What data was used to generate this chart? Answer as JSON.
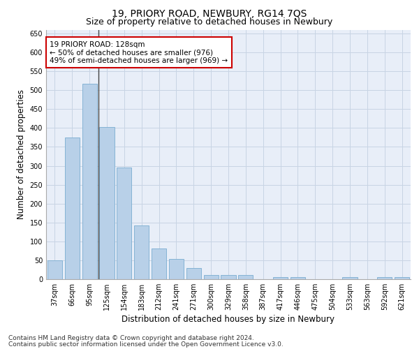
{
  "title": "19, PRIORY ROAD, NEWBURY, RG14 7QS",
  "subtitle": "Size of property relative to detached houses in Newbury",
  "xlabel": "Distribution of detached houses by size in Newbury",
  "ylabel": "Number of detached properties",
  "categories": [
    "37sqm",
    "66sqm",
    "95sqm",
    "125sqm",
    "154sqm",
    "183sqm",
    "212sqm",
    "241sqm",
    "271sqm",
    "300sqm",
    "329sqm",
    "358sqm",
    "387sqm",
    "417sqm",
    "446sqm",
    "475sqm",
    "504sqm",
    "533sqm",
    "563sqm",
    "592sqm",
    "621sqm"
  ],
  "values": [
    50,
    375,
    517,
    402,
    295,
    143,
    82,
    54,
    30,
    11,
    11,
    11,
    0,
    5,
    5,
    0,
    0,
    5,
    0,
    5,
    5
  ],
  "bar_color": "#b8d0e8",
  "bar_edge_color": "#7aacd0",
  "highlight_index": 3,
  "highlight_line_color": "#444444",
  "annotation_text": "19 PRIORY ROAD: 128sqm\n← 50% of detached houses are smaller (976)\n49% of semi-detached houses are larger (969) →",
  "annotation_box_color": "#ffffff",
  "annotation_box_edge_color": "#cc0000",
  "ylim": [
    0,
    660
  ],
  "yticks": [
    0,
    50,
    100,
    150,
    200,
    250,
    300,
    350,
    400,
    450,
    500,
    550,
    600,
    650
  ],
  "grid_color": "#c8d4e4",
  "background_color": "#e8eef8",
  "footer_line1": "Contains HM Land Registry data © Crown copyright and database right 2024.",
  "footer_line2": "Contains public sector information licensed under the Open Government Licence v3.0.",
  "title_fontsize": 10,
  "subtitle_fontsize": 9,
  "tick_fontsize": 7,
  "ylabel_fontsize": 8.5,
  "xlabel_fontsize": 8.5,
  "annotation_fontsize": 7.5,
  "footer_fontsize": 6.5
}
